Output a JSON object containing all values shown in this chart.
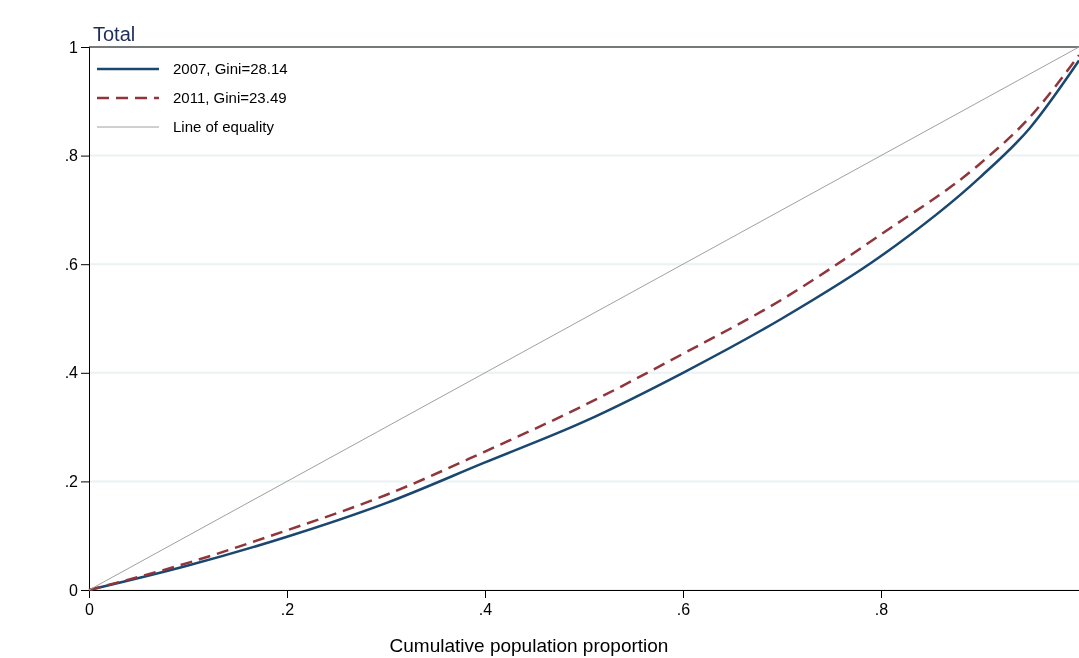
{
  "chart_data": {
    "type": "line",
    "title": "Total",
    "xlabel": "Cumulative population proportion",
    "xlim": [
      0,
      1
    ],
    "ylim": [
      0,
      1
    ],
    "xticks": [
      0,
      {
        "value": 0.2,
        "label": ".2"
      },
      {
        "value": 0.4,
        "label": ".4"
      },
      {
        "value": 0.6,
        "label": ".6"
      },
      {
        "value": 0.8,
        "label": ".8"
      }
    ],
    "yticks": [
      0,
      {
        "value": 0.2,
        "label": ".2"
      },
      {
        "value": 0.4,
        "label": ".4"
      },
      {
        "value": 0.6,
        "label": ".6"
      },
      {
        "value": 0.8,
        "label": ".8"
      },
      1
    ],
    "grid": "y",
    "legend": "top left",
    "series": [
      {
        "name": "2007, Gini=28.14",
        "color": "#1a476f",
        "line_style": "solid",
        "x": [
          0,
          0.1,
          0.2,
          0.3,
          0.4,
          0.5,
          0.6,
          0.7,
          0.8,
          0.9,
          0.95,
          1
        ],
        "values": [
          0,
          0.045,
          0.098,
          0.16,
          0.235,
          0.31,
          0.4,
          0.5,
          0.615,
          0.76,
          0.85,
          0.975
        ]
      },
      {
        "name": "2011, Gini=23.49",
        "color": "#90353b",
        "line_style": "dashed",
        "x": [
          0,
          0.1,
          0.2,
          0.3,
          0.4,
          0.5,
          0.6,
          0.7,
          0.8,
          0.9,
          0.95,
          1
        ],
        "values": [
          0,
          0.05,
          0.11,
          0.175,
          0.255,
          0.34,
          0.435,
          0.535,
          0.655,
          0.785,
          0.87,
          0.985
        ]
      },
      {
        "name": "Line of equality",
        "color": "#a0a0a0",
        "line_style": "solid",
        "x": [
          0,
          1
        ],
        "values": [
          0,
          1
        ]
      }
    ]
  }
}
